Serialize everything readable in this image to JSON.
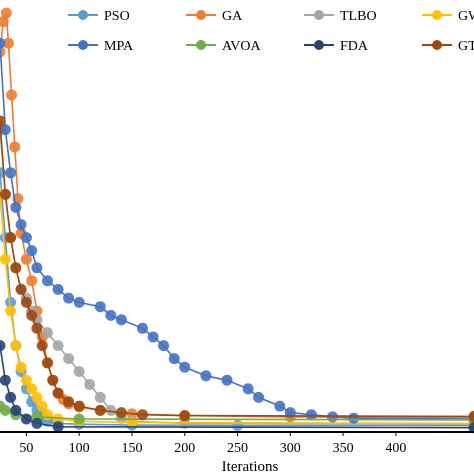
{
  "chart_data": {
    "type": "line",
    "title": "",
    "xlabel": "Iterations",
    "ylabel": "",
    "xlim": [
      25,
      474
    ],
    "ylim": [
      0,
      100
    ],
    "xticks": [
      50,
      100,
      150,
      200,
      250,
      300,
      350,
      400
    ],
    "xtick_labels": [
      "50",
      "100",
      "150",
      "200",
      "250",
      "300",
      "350",
      "400"
    ],
    "grid": false,
    "legend_position": "top",
    "series": [
      {
        "name": "PSO",
        "color": "#5B9BD5",
        "points": [
          [
            25,
            60
          ],
          [
            30,
            45
          ],
          [
            35,
            30
          ],
          [
            40,
            20
          ],
          [
            45,
            14
          ],
          [
            50,
            10
          ],
          [
            55,
            7
          ],
          [
            60,
            5
          ],
          [
            65,
            3.5
          ],
          [
            70,
            2.5
          ],
          [
            80,
            2
          ],
          [
            100,
            1.8
          ],
          [
            150,
            1.6
          ],
          [
            250,
            1.5
          ],
          [
            474,
            1.5
          ]
        ]
      },
      {
        "name": "GA",
        "color": "#ED7D31",
        "points": [
          [
            25,
            88
          ],
          [
            28,
            95
          ],
          [
            31,
            97
          ],
          [
            33,
            90
          ],
          [
            36,
            78
          ],
          [
            39,
            66
          ],
          [
            42,
            54
          ],
          [
            45,
            46
          ],
          [
            50,
            40
          ],
          [
            55,
            35
          ],
          [
            60,
            28
          ],
          [
            65,
            22
          ],
          [
            70,
            16
          ],
          [
            75,
            12
          ],
          [
            80,
            9
          ],
          [
            85,
            7.5
          ],
          [
            90,
            6.5
          ],
          [
            100,
            5.8
          ],
          [
            120,
            5
          ],
          [
            150,
            4.2
          ],
          [
            200,
            3.8
          ],
          [
            300,
            3.5
          ],
          [
            474,
            3.4
          ]
        ]
      },
      {
        "name": "TLBO",
        "color": "#A5A5A5",
        "points": [
          [
            25,
            70
          ],
          [
            30,
            55
          ],
          [
            35,
            45
          ],
          [
            40,
            38
          ],
          [
            45,
            33
          ],
          [
            50,
            31
          ],
          [
            55,
            28
          ],
          [
            60,
            26
          ],
          [
            70,
            23
          ],
          [
            80,
            20
          ],
          [
            90,
            17
          ],
          [
            100,
            14
          ],
          [
            110,
            11
          ],
          [
            120,
            8
          ],
          [
            130,
            5
          ],
          [
            140,
            3.2
          ],
          [
            150,
            2.5
          ],
          [
            200,
            2
          ],
          [
            474,
            1.8
          ]
        ]
      },
      {
        "name": "GWO",
        "color": "#FFC000",
        "points": [
          [
            25,
            55
          ],
          [
            30,
            40
          ],
          [
            35,
            28
          ],
          [
            40,
            20
          ],
          [
            45,
            15
          ],
          [
            50,
            12
          ],
          [
            55,
            10
          ],
          [
            60,
            8
          ],
          [
            65,
            6
          ],
          [
            70,
            4
          ],
          [
            80,
            3
          ],
          [
            100,
            2.5
          ],
          [
            150,
            2.2
          ],
          [
            474,
            2
          ]
        ]
      },
      {
        "name": "MPA",
        "color": "#4472C4",
        "points": [
          [
            25,
            90
          ],
          [
            30,
            70
          ],
          [
            35,
            60
          ],
          [
            40,
            52
          ],
          [
            45,
            48
          ],
          [
            50,
            45
          ],
          [
            55,
            42
          ],
          [
            60,
            38
          ],
          [
            70,
            35
          ],
          [
            80,
            33
          ],
          [
            90,
            31
          ],
          [
            100,
            30
          ],
          [
            120,
            29
          ],
          [
            130,
            27
          ],
          [
            140,
            26
          ],
          [
            160,
            24
          ],
          [
            170,
            22
          ],
          [
            180,
            20
          ],
          [
            190,
            17
          ],
          [
            200,
            15
          ],
          [
            220,
            13
          ],
          [
            240,
            12
          ],
          [
            260,
            10
          ],
          [
            270,
            8
          ],
          [
            290,
            6
          ],
          [
            300,
            4.5
          ],
          [
            320,
            4
          ],
          [
            340,
            3.5
          ],
          [
            360,
            3.2
          ],
          [
            474,
            3
          ]
        ]
      },
      {
        "name": "AVOA",
        "color": "#70AD47",
        "points": [
          [
            25,
            6
          ],
          [
            30,
            5
          ],
          [
            40,
            4
          ],
          [
            60,
            3.5
          ],
          [
            100,
            3
          ],
          [
            474,
            2.8
          ]
        ]
      },
      {
        "name": "FDA",
        "color": "#264478",
        "points": [
          [
            25,
            20
          ],
          [
            30,
            12
          ],
          [
            35,
            8
          ],
          [
            40,
            5
          ],
          [
            50,
            3
          ],
          [
            60,
            2
          ],
          [
            80,
            1.2
          ],
          [
            474,
            1
          ]
        ]
      },
      {
        "name": "GTO",
        "color": "#9E480E",
        "points": [
          [
            25,
            72
          ],
          [
            30,
            55
          ],
          [
            35,
            45
          ],
          [
            40,
            38
          ],
          [
            45,
            33
          ],
          [
            50,
            30
          ],
          [
            55,
            27
          ],
          [
            60,
            24
          ],
          [
            65,
            20
          ],
          [
            70,
            16
          ],
          [
            75,
            12
          ],
          [
            80,
            9
          ],
          [
            90,
            7
          ],
          [
            100,
            6
          ],
          [
            120,
            5
          ],
          [
            140,
            4.5
          ],
          [
            160,
            4
          ],
          [
            200,
            3.8
          ],
          [
            474,
            3.6
          ]
        ]
      }
    ]
  }
}
